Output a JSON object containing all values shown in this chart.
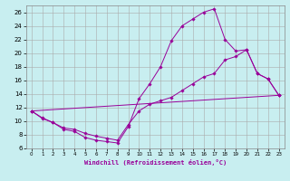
{
  "xlabel": "Windchill (Refroidissement éolien,°C)",
  "bg_color": "#c8eef0",
  "line_color": "#990099",
  "grid_color": "#aaaaaa",
  "xlim": [
    -0.5,
    23.5
  ],
  "ylim": [
    6,
    27
  ],
  "xticks": [
    0,
    1,
    2,
    3,
    4,
    5,
    6,
    7,
    8,
    9,
    10,
    11,
    12,
    13,
    14,
    15,
    16,
    17,
    18,
    19,
    20,
    21,
    22,
    23
  ],
  "yticks": [
    6,
    8,
    10,
    12,
    14,
    16,
    18,
    20,
    22,
    24,
    26
  ],
  "lines": [
    {
      "x": [
        0,
        1,
        2,
        3,
        4,
        5,
        6,
        7,
        8,
        9,
        10,
        11,
        12,
        13,
        14,
        15,
        16,
        17,
        18,
        19,
        20,
        21,
        22,
        23
      ],
      "y": [
        11.5,
        10.4,
        9.8,
        8.8,
        8.5,
        7.6,
        7.2,
        7.0,
        6.8,
        9.2,
        13.3,
        15.5,
        18.0,
        21.8,
        24.0,
        25.0,
        26.0,
        26.5,
        22.0,
        20.3,
        20.5,
        17.0,
        16.2,
        13.8
      ]
    },
    {
      "x": [
        0,
        1,
        2,
        3,
        4,
        5,
        6,
        7,
        8,
        9,
        10,
        11,
        12,
        13,
        14,
        15,
        16,
        17,
        18,
        19,
        20,
        21,
        22,
        23
      ],
      "y": [
        11.5,
        10.5,
        9.8,
        9.0,
        8.8,
        8.2,
        7.8,
        7.5,
        7.2,
        9.5,
        11.5,
        12.5,
        13.0,
        13.5,
        14.5,
        15.5,
        16.5,
        17.0,
        19.0,
        19.5,
        20.5,
        17.0,
        16.2,
        13.8
      ]
    },
    {
      "x": [
        0,
        23
      ],
      "y": [
        11.5,
        13.8
      ]
    }
  ]
}
